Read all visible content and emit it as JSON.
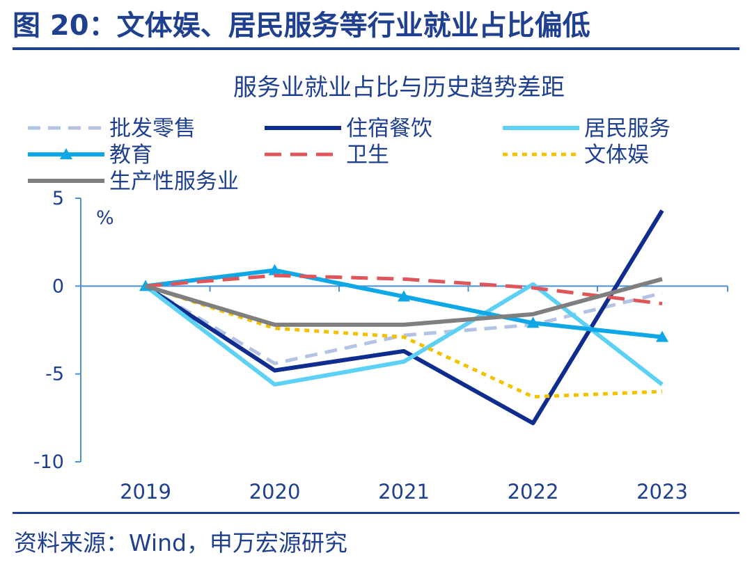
{
  "figure": {
    "label": "图 20：文体娱、居民服务等行业就业占比偏低",
    "source": "资料来源：Wind，申万宏源研究"
  },
  "colors": {
    "brand": "#1f3f8f",
    "axis": "#4a8fd8"
  },
  "chart_data": {
    "type": "line",
    "title": "服务业就业占比与历史趋势差距",
    "unit_label": "%",
    "x": [
      "2019",
      "2020",
      "2021",
      "2022",
      "2023"
    ],
    "ylim": [
      -10,
      5
    ],
    "yticks": [
      "5",
      "0",
      "-5",
      "-10"
    ],
    "grid": false,
    "legend_position": "top",
    "series": [
      {
        "name": "批发零售",
        "color": "#b4c3e3",
        "dash": "dash",
        "marker": "none",
        "values": [
          0,
          -4.4,
          -2.8,
          -2.2,
          -0.4
        ]
      },
      {
        "name": "住宿餐饮",
        "color": "#0e2d8e",
        "dash": "solid",
        "marker": "none",
        "values": [
          0,
          -4.8,
          -3.7,
          -7.8,
          4.3
        ]
      },
      {
        "name": "居民服务",
        "color": "#5dd0f5",
        "dash": "solid",
        "marker": "none",
        "values": [
          0,
          -5.6,
          -4.3,
          0.1,
          -5.6
        ]
      },
      {
        "name": "教育",
        "color": "#0fa7e6",
        "dash": "solid",
        "marker": "triangle",
        "values": [
          0,
          0.9,
          -0.6,
          -2.1,
          -2.9
        ]
      },
      {
        "name": "卫生",
        "color": "#e0555a",
        "dash": "longdash",
        "marker": "none",
        "values": [
          0,
          0.6,
          0.4,
          -0.1,
          -1.0
        ]
      },
      {
        "name": "文体娱",
        "color": "#f2c200",
        "dash": "dot",
        "marker": "none",
        "values": [
          0,
          -2.4,
          -2.9,
          -6.3,
          -6.0
        ]
      },
      {
        "name": "生产性服务业",
        "color": "#7f7f7f",
        "dash": "solid",
        "marker": "none",
        "values": [
          0,
          -2.2,
          -2.2,
          -1.6,
          0.4
        ]
      }
    ]
  }
}
